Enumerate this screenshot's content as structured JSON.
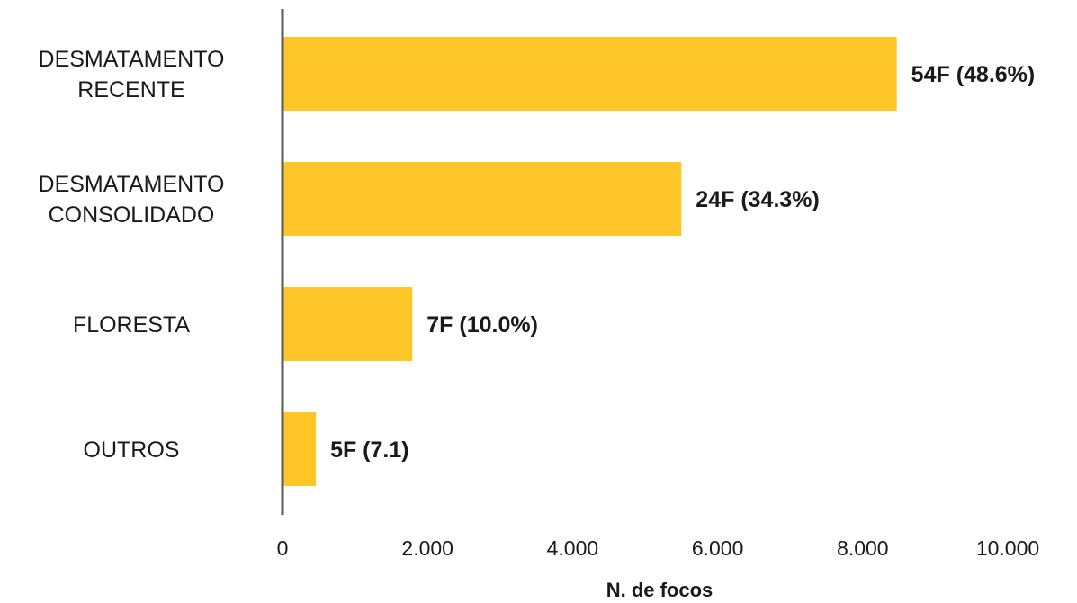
{
  "chart_data": {
    "type": "bar",
    "orientation": "horizontal",
    "categories": [
      [
        "DESMATAMENTO",
        "RECENTE"
      ],
      [
        "DESMATAMENTO",
        "CONSOLIDADO"
      ],
      [
        "FLORESTA"
      ],
      [
        "OUTROS"
      ]
    ],
    "values": [
      8470,
      5500,
      1790,
      460
    ],
    "data_labels": [
      "54F (48.6%)",
      "24F (34.3%)",
      "7F (10.0%)",
      "5F (7.1)"
    ],
    "xlabel": "N. de focos",
    "xlim": [
      0,
      10000
    ],
    "x_ticks": [
      0,
      2000,
      4000,
      6000,
      8000,
      10000
    ],
    "x_tick_labels": [
      "0",
      "2.000",
      "4.000",
      "6.000",
      "8.000",
      "10.000"
    ],
    "grid": false,
    "legend": "none",
    "bar_color": "#FFC629",
    "axis_color": "#595959"
  }
}
